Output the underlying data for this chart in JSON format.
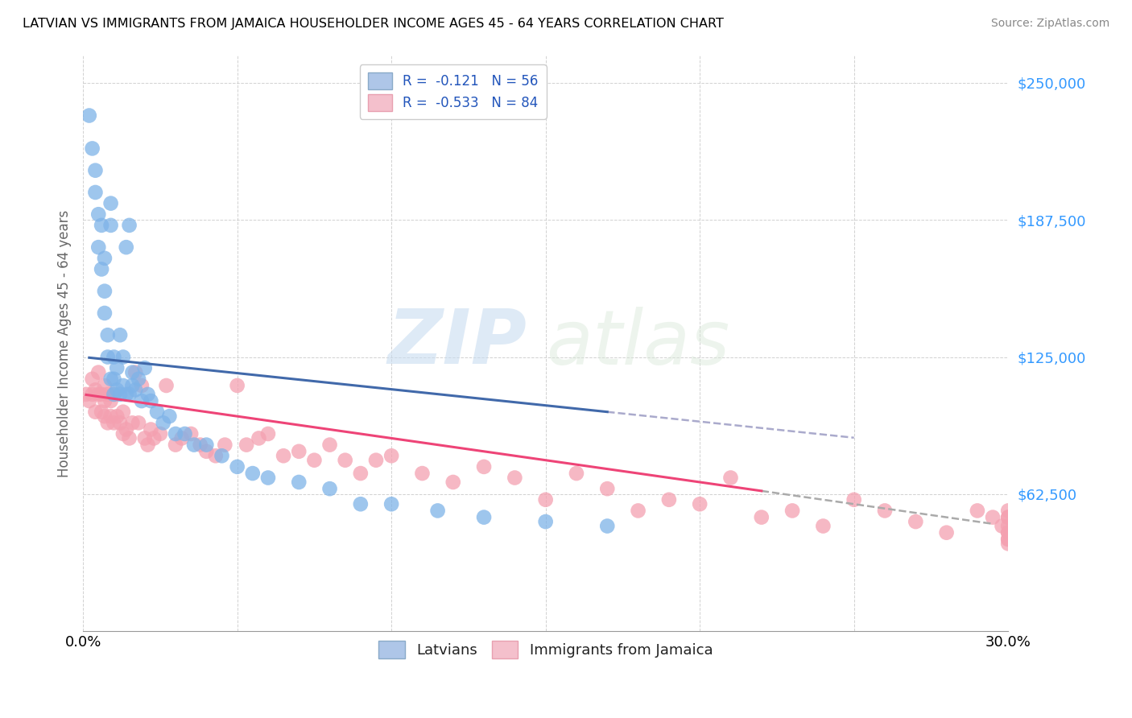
{
  "title": "LATVIAN VS IMMIGRANTS FROM JAMAICA HOUSEHOLDER INCOME AGES 45 - 64 YEARS CORRELATION CHART",
  "source": "Source: ZipAtlas.com",
  "ylabel": "Householder Income Ages 45 - 64 years",
  "xlim": [
    0.0,
    0.3
  ],
  "ylim": [
    0,
    262500
  ],
  "yticks": [
    0,
    62500,
    125000,
    187500,
    250000
  ],
  "ytick_labels": [
    "",
    "$62,500",
    "$125,000",
    "$187,500",
    "$250,000"
  ],
  "xticks": [
    0.0,
    0.05,
    0.1,
    0.15,
    0.2,
    0.25,
    0.3
  ],
  "xtick_labels": [
    "0.0%",
    "",
    "",
    "",
    "",
    "",
    "30.0%"
  ],
  "legend1_label": "R =  -0.121   N = 56",
  "legend2_label": "R =  -0.533   N = 84",
  "legend_bottom_label1": "Latvians",
  "legend_bottom_label2": "Immigrants from Jamaica",
  "watermark_zip": "ZIP",
  "watermark_atlas": "atlas",
  "blue_color": "#7EB3E8",
  "pink_color": "#F4A0B0",
  "blue_line_color": "#4169AA",
  "pink_line_color": "#EE4477",
  "latvian_x": [
    0.002,
    0.003,
    0.004,
    0.004,
    0.005,
    0.005,
    0.006,
    0.006,
    0.007,
    0.007,
    0.007,
    0.008,
    0.008,
    0.009,
    0.009,
    0.009,
    0.01,
    0.01,
    0.01,
    0.011,
    0.011,
    0.012,
    0.012,
    0.013,
    0.013,
    0.014,
    0.014,
    0.015,
    0.015,
    0.016,
    0.016,
    0.017,
    0.018,
    0.019,
    0.02,
    0.021,
    0.022,
    0.024,
    0.026,
    0.028,
    0.03,
    0.033,
    0.036,
    0.04,
    0.045,
    0.05,
    0.055,
    0.06,
    0.07,
    0.08,
    0.09,
    0.1,
    0.115,
    0.13,
    0.15,
    0.17
  ],
  "latvian_y": [
    235000,
    220000,
    210000,
    200000,
    175000,
    190000,
    165000,
    185000,
    155000,
    145000,
    170000,
    135000,
    125000,
    195000,
    185000,
    115000,
    125000,
    115000,
    108000,
    110000,
    120000,
    108000,
    135000,
    112000,
    125000,
    108000,
    175000,
    185000,
    108000,
    112000,
    118000,
    110000,
    115000,
    105000,
    120000,
    108000,
    105000,
    100000,
    95000,
    98000,
    90000,
    90000,
    85000,
    85000,
    80000,
    75000,
    72000,
    70000,
    68000,
    65000,
    58000,
    58000,
    55000,
    52000,
    50000,
    48000
  ],
  "jamaica_x": [
    0.001,
    0.002,
    0.003,
    0.003,
    0.004,
    0.004,
    0.005,
    0.005,
    0.006,
    0.006,
    0.007,
    0.007,
    0.007,
    0.008,
    0.008,
    0.009,
    0.009,
    0.01,
    0.01,
    0.011,
    0.012,
    0.013,
    0.013,
    0.014,
    0.015,
    0.016,
    0.017,
    0.018,
    0.019,
    0.02,
    0.021,
    0.022,
    0.023,
    0.025,
    0.027,
    0.03,
    0.032,
    0.035,
    0.038,
    0.04,
    0.043,
    0.046,
    0.05,
    0.053,
    0.057,
    0.06,
    0.065,
    0.07,
    0.075,
    0.08,
    0.085,
    0.09,
    0.095,
    0.1,
    0.11,
    0.12,
    0.13,
    0.14,
    0.15,
    0.16,
    0.17,
    0.18,
    0.19,
    0.2,
    0.21,
    0.22,
    0.23,
    0.24,
    0.25,
    0.26,
    0.27,
    0.28,
    0.29,
    0.295,
    0.298,
    0.3,
    0.3,
    0.3,
    0.3,
    0.3,
    0.3,
    0.3,
    0.3,
    0.3
  ],
  "jamaica_y": [
    108000,
    105000,
    108000,
    115000,
    100000,
    110000,
    108000,
    118000,
    100000,
    108000,
    105000,
    98000,
    112000,
    108000,
    95000,
    98000,
    105000,
    95000,
    108000,
    98000,
    95000,
    100000,
    90000,
    92000,
    88000,
    95000,
    118000,
    95000,
    112000,
    88000,
    85000,
    92000,
    88000,
    90000,
    112000,
    85000,
    88000,
    90000,
    85000,
    82000,
    80000,
    85000,
    112000,
    85000,
    88000,
    90000,
    80000,
    82000,
    78000,
    85000,
    78000,
    72000,
    78000,
    80000,
    72000,
    68000,
    75000,
    70000,
    60000,
    72000,
    65000,
    55000,
    60000,
    58000,
    70000,
    52000,
    55000,
    48000,
    60000,
    55000,
    50000,
    45000,
    55000,
    52000,
    48000,
    42000,
    55000,
    52000,
    45000,
    42000,
    40000,
    48000,
    52000,
    45000
  ]
}
